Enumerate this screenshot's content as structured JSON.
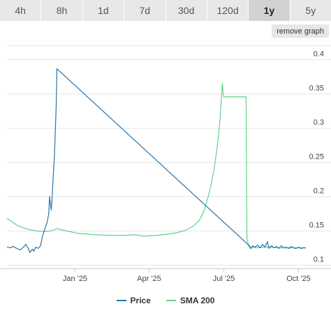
{
  "tabs": [
    {
      "label": "4h",
      "active": false
    },
    {
      "label": "8h",
      "active": false
    },
    {
      "label": "1d",
      "active": false
    },
    {
      "label": "7d",
      "active": false
    },
    {
      "label": "30d",
      "active": false
    },
    {
      "label": "120d",
      "active": false
    },
    {
      "label": "1y",
      "active": true
    },
    {
      "label": "5y",
      "active": false
    }
  ],
  "remove_graph_label": "remove graph",
  "colors": {
    "price": "#2874a8",
    "sma": "#5fd38a",
    "grid": "#e6e6e6",
    "axis": "#cccccc"
  },
  "chart_data": {
    "type": "line",
    "x_axis": {
      "type": "date",
      "min": "2024-10-10",
      "max": "2025-10-10",
      "ticks": [
        {
          "value": "2025-01-01",
          "label": "Jan '25"
        },
        {
          "value": "2025-04-01",
          "label": "Apr '25"
        },
        {
          "value": "2025-07-01",
          "label": "Jul '25"
        },
        {
          "value": "2025-10-01",
          "label": "Oct '25"
        }
      ]
    },
    "y_axis": {
      "min": 0.095,
      "max": 0.42,
      "ticks": [
        0.1,
        0.15,
        0.2,
        0.25,
        0.3,
        0.35,
        0.4
      ],
      "tick_labels": [
        "0.1",
        "0.15",
        "0.2",
        "0.25",
        "0.3",
        "0.35",
        "0.4"
      ],
      "position": "right",
      "grid": true
    },
    "legend": {
      "placement": "bottom-center"
    },
    "series": [
      {
        "name": "Price",
        "points": [
          [
            "2024-10-10",
            0.126
          ],
          [
            "2024-10-14",
            0.125
          ],
          [
            "2024-10-18",
            0.127
          ],
          [
            "2024-10-22",
            0.124
          ],
          [
            "2024-10-26",
            0.122
          ],
          [
            "2024-10-30",
            0.126
          ],
          [
            "2024-11-02",
            0.13
          ],
          [
            "2024-11-05",
            0.124
          ],
          [
            "2024-11-07",
            0.118
          ],
          [
            "2024-11-10",
            0.123
          ],
          [
            "2024-11-12",
            0.12
          ],
          [
            "2024-11-14",
            0.126
          ],
          [
            "2024-11-17",
            0.124
          ],
          [
            "2024-11-20",
            0.128
          ],
          [
            "2024-11-22",
            0.14
          ],
          [
            "2024-11-24",
            0.148
          ],
          [
            "2024-11-26",
            0.155
          ],
          [
            "2024-11-28",
            0.162
          ],
          [
            "2024-11-30",
            0.175
          ],
          [
            "2024-12-01",
            0.2
          ],
          [
            "2024-12-02",
            0.19
          ],
          [
            "2024-12-03",
            0.18
          ],
          [
            "2024-12-04",
            0.195
          ],
          [
            "2024-12-05",
            0.22
          ],
          [
            "2024-12-07",
            0.26
          ],
          [
            "2024-12-09",
            0.33
          ],
          [
            "2024-12-10",
            0.386
          ],
          [
            "2025-08-02",
            0.128
          ],
          [
            "2025-08-04",
            0.124
          ],
          [
            "2025-08-06",
            0.128
          ],
          [
            "2025-08-09",
            0.126
          ],
          [
            "2025-08-12",
            0.129
          ],
          [
            "2025-08-15",
            0.125
          ],
          [
            "2025-08-18",
            0.13
          ],
          [
            "2025-08-21",
            0.126
          ],
          [
            "2025-08-24",
            0.134
          ],
          [
            "2025-08-26",
            0.124
          ],
          [
            "2025-08-29",
            0.128
          ],
          [
            "2025-09-01",
            0.125
          ],
          [
            "2025-09-04",
            0.127
          ],
          [
            "2025-09-07",
            0.124
          ],
          [
            "2025-09-10",
            0.128
          ],
          [
            "2025-09-13",
            0.125
          ],
          [
            "2025-09-16",
            0.126
          ],
          [
            "2025-09-19",
            0.124
          ],
          [
            "2025-09-22",
            0.127
          ],
          [
            "2025-09-25",
            0.125
          ],
          [
            "2025-09-28",
            0.124
          ],
          [
            "2025-10-01",
            0.126
          ],
          [
            "2025-10-04",
            0.124
          ],
          [
            "2025-10-07",
            0.125
          ],
          [
            "2025-10-10",
            0.125
          ]
        ]
      },
      {
        "name": "SMA 200",
        "points": [
          [
            "2024-10-10",
            0.168
          ],
          [
            "2024-10-16",
            0.163
          ],
          [
            "2024-10-22",
            0.158
          ],
          [
            "2024-10-28",
            0.155
          ],
          [
            "2024-11-05",
            0.152
          ],
          [
            "2024-11-12",
            0.15
          ],
          [
            "2024-11-20",
            0.149
          ],
          [
            "2024-11-28",
            0.149
          ],
          [
            "2024-12-04",
            0.15
          ],
          [
            "2024-12-10",
            0.153
          ],
          [
            "2024-12-20",
            0.15
          ],
          [
            "2025-01-05",
            0.146
          ],
          [
            "2025-01-25",
            0.144
          ],
          [
            "2025-02-15",
            0.143
          ],
          [
            "2025-03-01",
            0.143
          ],
          [
            "2025-03-15",
            0.144
          ],
          [
            "2025-03-25",
            0.142
          ],
          [
            "2025-04-10",
            0.143
          ],
          [
            "2025-04-25",
            0.145
          ],
          [
            "2025-05-05",
            0.147
          ],
          [
            "2025-05-15",
            0.15
          ],
          [
            "2025-05-25",
            0.156
          ],
          [
            "2025-06-02",
            0.165
          ],
          [
            "2025-06-08",
            0.18
          ],
          [
            "2025-06-14",
            0.205
          ],
          [
            "2025-06-20",
            0.24
          ],
          [
            "2025-06-24",
            0.275
          ],
          [
            "2025-06-27",
            0.31
          ],
          [
            "2025-06-29",
            0.345
          ],
          [
            "2025-06-30",
            0.365
          ],
          [
            "2025-07-01",
            0.35
          ],
          [
            "2025-07-02",
            0.345
          ],
          [
            "2025-07-29",
            0.345
          ],
          [
            "2025-07-30",
            0.14
          ],
          [
            "2025-08-01",
            0.128
          ],
          [
            "2025-08-03",
            0.124
          ],
          [
            "2025-08-06",
            0.126
          ],
          [
            "2025-08-10",
            0.125
          ],
          [
            "2025-08-18",
            0.126
          ],
          [
            "2025-08-28",
            0.126
          ],
          [
            "2025-09-10",
            0.125
          ],
          [
            "2025-09-25",
            0.125
          ],
          [
            "2025-10-10",
            0.125
          ]
        ]
      }
    ]
  }
}
